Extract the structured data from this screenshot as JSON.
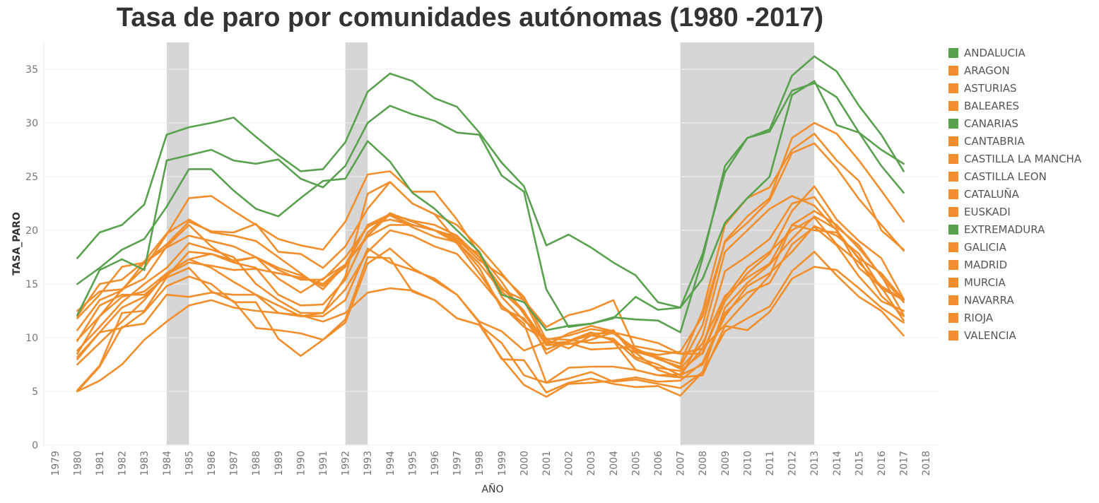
{
  "title": "Tasa de paro por comunidades autónomas (1980 -2017)",
  "colors": {
    "south": "#59A14F",
    "rest": "#F28E2B",
    "shade": "#D6D6D6",
    "grid": "#EFEFEF"
  },
  "chart_data": {
    "type": "line",
    "title": "Tasa de paro por comunidades autónomas (1980 -2017)",
    "xlabel": "AÑO",
    "ylabel": "TASA_PARO",
    "xlim": [
      1979,
      2018
    ],
    "ylim": [
      0,
      37.5
    ],
    "yticks": [
      0,
      5,
      10,
      15,
      20,
      25,
      30,
      35
    ],
    "xticks": [
      "1979",
      "1980",
      "1981",
      "1982",
      "1983",
      "1984",
      "1985",
      "1986",
      "1987",
      "1988",
      "1989",
      "1990",
      "1991",
      "1992",
      "1993",
      "1994",
      "1995",
      "1996",
      "1997",
      "1998",
      "1999",
      "2000",
      "2001",
      "2002",
      "2003",
      "2004",
      "2005",
      "2006",
      "2007",
      "2008",
      "2009",
      "2010",
      "2011",
      "2012",
      "2013",
      "2014",
      "2015",
      "2016",
      "2017",
      "2018"
    ],
    "x": [
      1980,
      1981,
      1982,
      1983,
      1984,
      1985,
      1986,
      1987,
      1988,
      1989,
      1990,
      1991,
      1992,
      1993,
      1994,
      1995,
      1996,
      1997,
      1998,
      1999,
      2000,
      2001,
      2002,
      2003,
      2004,
      2005,
      2006,
      2007,
      2008,
      2009,
      2010,
      2011,
      2012,
      2013,
      2014,
      2015,
      2016,
      2017
    ],
    "shaded_periods": [
      [
        1984,
        1985
      ],
      [
        1992,
        1993
      ],
      [
        2007,
        2013
      ]
    ],
    "grid": "horizontal",
    "legend_position": "right",
    "series": [
      {
        "name": "ANDALUCIA",
        "color": "#59A14F",
        "values": [
          17.4,
          19.8,
          20.5,
          22.4,
          28.9,
          29.6,
          30.0,
          30.5,
          28.7,
          27.0,
          25.5,
          25.7,
          28.2,
          32.9,
          34.6,
          33.9,
          32.3,
          31.5,
          29.1,
          26.3,
          24.1,
          18.6,
          19.6,
          18.4,
          17.0,
          15.8,
          13.3,
          12.8,
          17.8,
          25.4,
          28.6,
          29.4,
          34.4,
          36.2,
          34.8,
          31.6,
          28.9,
          25.5
        ]
      },
      {
        "name": "ARAGON",
        "color": "#F28E2B",
        "values": [
          7.5,
          9.5,
          11.5,
          13.5,
          16.0,
          17.3,
          16.5,
          15.2,
          14.0,
          13.0,
          12.0,
          12.3,
          14.5,
          18.0,
          20.0,
          19.5,
          18.5,
          17.8,
          15.5,
          13.0,
          11.3,
          5.8,
          6.2,
          6.8,
          5.9,
          6.1,
          5.7,
          5.3,
          6.8,
          12.8,
          15.1,
          16.8,
          19.2,
          21.3,
          20.1,
          16.5,
          14.7,
          11.6
        ]
      },
      {
        "name": "ASTURIAS",
        "color": "#F28E2B",
        "values": [
          8.5,
          12.0,
          14.5,
          15.5,
          18.5,
          20.5,
          18.5,
          17.1,
          17.5,
          16.5,
          15.8,
          14.8,
          16.6,
          20.5,
          21.0,
          20.5,
          20.0,
          19.4,
          17.5,
          14.5,
          13.5,
          9.3,
          9.4,
          9.8,
          10.5,
          10.0,
          9.5,
          8.5,
          8.5,
          13.4,
          16.0,
          17.8,
          21.8,
          24.1,
          21.0,
          19.0,
          17.4,
          13.6
        ]
      },
      {
        "name": "BALEARES",
        "color": "#F28E2B",
        "values": [
          5.0,
          6.0,
          7.5,
          9.8,
          11.5,
          13.0,
          13.5,
          12.8,
          12.5,
          12.3,
          12.1,
          11.5,
          12.3,
          14.2,
          14.6,
          14.4,
          13.5,
          11.8,
          11.2,
          9.5,
          6.5,
          5.8,
          7.2,
          7.3,
          7.3,
          7.0,
          6.5,
          6.3,
          10.2,
          18.0,
          20.0,
          22.0,
          23.2,
          22.3,
          20.0,
          17.3,
          13.9,
          12.0
        ]
      },
      {
        "name": "CANARIAS",
        "color": "#59A14F",
        "values": [
          12.1,
          16.3,
          17.3,
          16.3,
          26.5,
          27.0,
          27.5,
          26.5,
          26.2,
          26.6,
          24.8,
          24.0,
          26.0,
          30.0,
          31.6,
          30.8,
          30.2,
          29.1,
          28.9,
          25.1,
          23.6,
          14.5,
          11.0,
          11.3,
          11.9,
          11.7,
          11.6,
          10.5,
          17.4,
          26.0,
          28.6,
          29.2,
          33.0,
          33.7,
          32.4,
          29.1,
          26.0,
          23.5
        ]
      },
      {
        "name": "CANTABRIA",
        "color": "#F28E2B",
        "values": [
          9.8,
          12.0,
          13.8,
          14.3,
          16.0,
          17.3,
          17.8,
          17.0,
          16.5,
          14.0,
          13.0,
          13.1,
          15.4,
          19.8,
          21.6,
          20.8,
          20.0,
          18.8,
          16.0,
          13.0,
          11.0,
          9.8,
          9.0,
          10.2,
          10.7,
          8.2,
          7.5,
          6.5,
          7.5,
          12.0,
          14.8,
          16.0,
          18.0,
          20.4,
          19.5,
          17.8,
          14.6,
          13.5
        ]
      },
      {
        "name": "CASTILLA LA MANCHA",
        "color": "#F28E2B",
        "values": [
          9.7,
          13.0,
          14.0,
          14.0,
          15.7,
          18.0,
          17.8,
          17.2,
          17.5,
          16.3,
          15.4,
          15.4,
          17.5,
          20.3,
          21.4,
          20.3,
          19.4,
          18.9,
          16.9,
          14.3,
          12.4,
          9.5,
          9.6,
          10.4,
          10.4,
          9.0,
          8.0,
          7.3,
          11.2,
          19.0,
          21.3,
          23.0,
          28.6,
          30.0,
          29.0,
          26.5,
          23.7,
          20.8
        ]
      },
      {
        "name": "CASTILLA LEON",
        "color": "#F28E2B",
        "values": [
          8.0,
          10.5,
          12.8,
          13.8,
          15.9,
          17.0,
          16.7,
          16.3,
          16.4,
          16.0,
          15.6,
          15.0,
          16.8,
          19.4,
          20.5,
          20.5,
          20.0,
          19.2,
          17.2,
          15.8,
          13.8,
          9.8,
          10.2,
          10.8,
          10.5,
          8.7,
          8.1,
          7.1,
          9.5,
          13.9,
          15.6,
          16.9,
          20.5,
          21.8,
          20.5,
          18.3,
          15.8,
          12.1
        ]
      },
      {
        "name": "CATALUÑA",
        "color": "#F28E2B",
        "values": [
          12.0,
          15.0,
          15.4,
          17.1,
          19.7,
          21.0,
          19.8,
          19.5,
          19.0,
          17.5,
          16.0,
          14.5,
          16.8,
          20.5,
          21.5,
          20.5,
          20.0,
          19.0,
          16.5,
          12.7,
          11.8,
          8.9,
          9.7,
          10.5,
          9.7,
          7.0,
          6.5,
          6.6,
          9.0,
          16.2,
          17.6,
          19.2,
          22.5,
          23.1,
          20.3,
          18.6,
          15.7,
          13.3
        ]
      },
      {
        "name": "EUSKADI",
        "color": "#F28E2B",
        "values": [
          11.8,
          14.0,
          16.6,
          17.0,
          18.7,
          20.8,
          19.9,
          19.8,
          20.6,
          18.0,
          17.8,
          16.5,
          18.5,
          22.0,
          24.5,
          22.5,
          21.5,
          19.0,
          17.8,
          13.8,
          11.6,
          9.9,
          9.8,
          9.5,
          9.6,
          8.6,
          7.0,
          6.3,
          6.5,
          11.1,
          10.7,
          12.4,
          15.5,
          16.6,
          16.3,
          14.6,
          12.8,
          11.4
        ]
      },
      {
        "name": "EXTREMADURA",
        "color": "#59A14F",
        "values": [
          15.0,
          16.5,
          18.2,
          19.2,
          22.2,
          25.7,
          25.7,
          23.7,
          22.0,
          21.3,
          23.0,
          24.6,
          24.8,
          28.3,
          26.4,
          23.5,
          22.0,
          20.0,
          18.0,
          14.0,
          13.3,
          10.7,
          11.1,
          11.3,
          11.8,
          13.8,
          12.6,
          12.8,
          15.5,
          20.7,
          23.0,
          25.0,
          32.6,
          33.9,
          29.8,
          29.1,
          27.5,
          26.2
        ]
      },
      {
        "name": "GALICIA",
        "color": "#F28E2B",
        "values": [
          5.0,
          7.3,
          11.0,
          11.3,
          14.0,
          13.8,
          14.2,
          14.0,
          14.0,
          12.3,
          12.0,
          12.0,
          13.5,
          18.3,
          17.0,
          16.3,
          15.5,
          14.0,
          11.5,
          10.6,
          8.8,
          9.6,
          9.5,
          8.9,
          9.0,
          9.2,
          8.8,
          8.5,
          9.0,
          11.2,
          13.5,
          15.8,
          20.5,
          20.0,
          19.8,
          17.4,
          16.0,
          13.5
        ]
      },
      {
        "name": "MADRID",
        "color": "#F28E2B",
        "values": [
          10.7,
          13.5,
          14.4,
          17.0,
          18.4,
          19.5,
          19.0,
          18.5,
          17.5,
          15.5,
          14.2,
          15.5,
          16.8,
          19.5,
          21.5,
          20.9,
          20.5,
          19.5,
          17.5,
          14.7,
          12.5,
          8.5,
          9.7,
          10.2,
          9.9,
          8.0,
          7.2,
          6.9,
          8.6,
          13.7,
          16.5,
          18.0,
          20.0,
          21.2,
          18.7,
          17.0,
          14.8,
          13.5
        ]
      },
      {
        "name": "MURCIA",
        "color": "#F28E2B",
        "values": [
          8.8,
          11.0,
          13.3,
          15.0,
          16.5,
          18.8,
          18.2,
          17.5,
          15.0,
          13.5,
          12.3,
          12.3,
          15.7,
          23.4,
          24.5,
          22.5,
          21.5,
          20.5,
          18.4,
          16.0,
          13.5,
          11.0,
          12.1,
          12.6,
          13.5,
          8.9,
          8.2,
          7.6,
          12.5,
          20.5,
          23.0,
          24.0,
          27.5,
          29.0,
          26.5,
          24.6,
          20.0,
          18.2
        ]
      },
      {
        "name": "NAVARRA",
        "color": "#F28E2B",
        "values": [
          8.2,
          10.5,
          10.9,
          12.4,
          14.8,
          15.7,
          15.0,
          13.3,
          13.3,
          9.9,
          8.3,
          9.8,
          11.4,
          16.9,
          18.3,
          16.5,
          15.3,
          14.0,
          11.4,
          8.0,
          7.9,
          4.9,
          5.8,
          6.2,
          5.7,
          5.4,
          5.5,
          4.6,
          6.8,
          10.6,
          11.8,
          12.9,
          16.2,
          18.0,
          15.8,
          13.8,
          12.5,
          10.2
        ]
      },
      {
        "name": "RIOJA",
        "color": "#F28E2B",
        "values": [
          5.1,
          7.4,
          12.3,
          12.5,
          15.6,
          16.5,
          14.3,
          13.4,
          10.9,
          10.7,
          10.4,
          9.8,
          11.7,
          17.5,
          17.4,
          14.3,
          13.5,
          11.8,
          11.2,
          8.1,
          5.6,
          4.5,
          5.7,
          5.8,
          6.0,
          6.3,
          5.9,
          6.0,
          7.7,
          12.3,
          14.2,
          15.1,
          18.7,
          20.3,
          18.6,
          15.7,
          13.4,
          12.5
        ]
      },
      {
        "name": "VALENCIA",
        "color": "#F28E2B",
        "values": [
          12.5,
          14.3,
          14.5,
          16.5,
          19.6,
          23.0,
          23.2,
          21.8,
          20.5,
          19.2,
          18.6,
          18.2,
          20.8,
          25.2,
          25.5,
          23.6,
          23.6,
          21.0,
          17.8,
          15.2,
          12.2,
          9.3,
          10.4,
          11.1,
          10.6,
          8.8,
          8.4,
          8.7,
          12.0,
          18.9,
          20.7,
          22.8,
          27.2,
          28.1,
          25.8,
          22.9,
          20.5,
          18.1
        ]
      }
    ]
  }
}
